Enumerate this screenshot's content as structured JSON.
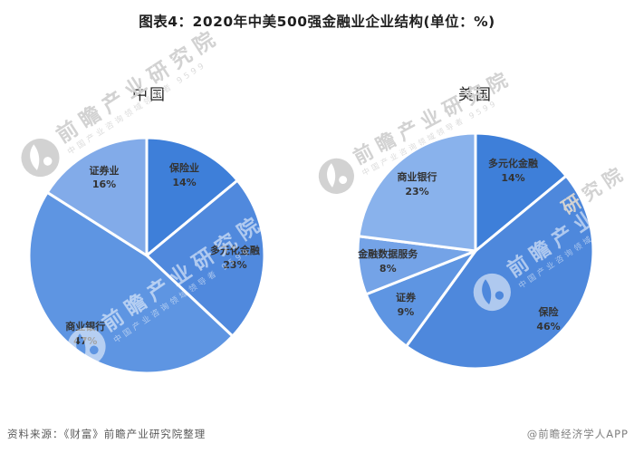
{
  "title": "图表4：2020年中美500强金融业企业结构(单位：%)",
  "footer": {
    "source": "资料来源：《财富》前瞻产业研究院整理",
    "credit": "@前瞻经济学人APP"
  },
  "watermark": {
    "brand": "前瞻产业研究院",
    "brand_fragment": "研究院",
    "slogan": "中国产业咨询领域领导者",
    "digits": "9599",
    "logo": "qianzhan-bird-logo"
  },
  "colors": {
    "label_text": "#333333",
    "slice_divider": "#ffffff"
  },
  "chart_data": [
    {
      "type": "pie",
      "title": "中国",
      "unit": "%",
      "start_angle_deg": 0,
      "direction": "clockwise",
      "legend_position": "inside-labels",
      "slices": [
        {
          "label": "保险业",
          "value": 14,
          "color": "#3e7fd9"
        },
        {
          "label": "多元化金融",
          "value": 23,
          "color": "#5089dd"
        },
        {
          "label": "商业银行",
          "value": 47,
          "color": "#5e95e2"
        },
        {
          "label": "证券业",
          "value": 16,
          "color": "#82abe9"
        }
      ]
    },
    {
      "type": "pie",
      "title": "美国",
      "unit": "%",
      "start_angle_deg": 0,
      "direction": "clockwise",
      "legend_position": "inside-labels",
      "slices": [
        {
          "label": "多元化金融",
          "value": 14,
          "color": "#3e7fd9"
        },
        {
          "label": "保险",
          "value": 46,
          "color": "#4e88dc"
        },
        {
          "label": "证券",
          "value": 9,
          "color": "#5e95e2"
        },
        {
          "label": "金融数据服务",
          "value": 8,
          "color": "#74a3e7"
        },
        {
          "label": "商业银行",
          "value": 23,
          "color": "#89b2ec"
        }
      ]
    }
  ]
}
